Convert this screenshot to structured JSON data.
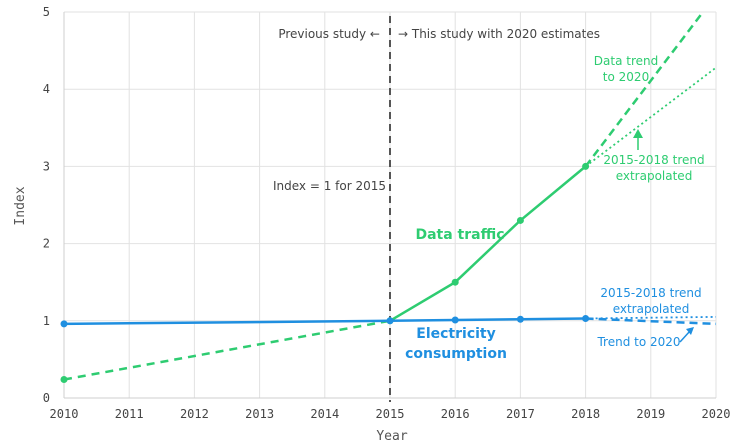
{
  "chart_data": {
    "type": "line",
    "xlabel": "Year",
    "ylabel": "Index",
    "xlim": [
      2010,
      2020
    ],
    "ylim": [
      0,
      5
    ],
    "x_ticks": [
      "2010",
      "2011",
      "2012",
      "2013",
      "2014",
      "2015",
      "2016",
      "2017",
      "2018",
      "2019",
      "2020"
    ],
    "y_ticks": [
      "0",
      "1",
      "2",
      "3",
      "4",
      "5"
    ],
    "grid": true,
    "colors": {
      "data_traffic": "#2ecc71",
      "electricity": "#1f8fe0",
      "divider": "#555555"
    },
    "series": [
      {
        "name": "Data traffic",
        "color": "#2ecc71",
        "points": [
          {
            "x": 2015,
            "y": 1.0
          },
          {
            "x": 2016,
            "y": 1.5
          },
          {
            "x": 2017,
            "y": 2.3
          },
          {
            "x": 2018,
            "y": 3.0
          }
        ],
        "backcast_dashed": [
          {
            "x": 2010,
            "y": 0.24
          },
          {
            "x": 2015,
            "y": 1.0
          }
        ],
        "trend_2020_dashed": [
          {
            "x": 2018,
            "y": 3.0
          },
          {
            "x": 2019.8,
            "y": 5.0
          }
        ],
        "extrapolated_dotted": [
          {
            "x": 2018,
            "y": 3.0
          },
          {
            "x": 2020,
            "y": 4.28
          }
        ]
      },
      {
        "name": "Electricity consumption",
        "color": "#1f8fe0",
        "points": [
          {
            "x": 2010,
            "y": 0.96
          },
          {
            "x": 2015,
            "y": 1.0
          },
          {
            "x": 2016,
            "y": 1.01
          },
          {
            "x": 2017,
            "y": 1.02
          },
          {
            "x": 2018,
            "y": 1.03
          }
        ],
        "trend_2020_dashed": [
          {
            "x": 2018,
            "y": 1.03
          },
          {
            "x": 2020,
            "y": 0.96
          }
        ],
        "extrapolated_dotted": [
          {
            "x": 2018,
            "y": 1.03
          },
          {
            "x": 2020,
            "y": 1.05
          }
        ]
      }
    ],
    "divider": {
      "x": 2015
    },
    "annotations": {
      "previous_study": "Previous study ←",
      "this_study": "→ This study with 2020 estimates",
      "index_note": "Index = 1 for 2015",
      "data_trend_line1": "Data trend",
      "data_trend_line2": "to 2020",
      "data_extrap_line1": "2015-2018 trend",
      "data_extrap_line2": "extrapolated",
      "elec_extrap_line1": "2015-2018 trend",
      "elec_extrap_line2": "extrapolated",
      "elec_trend": "Trend to 2020",
      "data_label": "Data traffic",
      "elec_label_line1": "Electricity",
      "elec_label_line2": "consumption"
    }
  }
}
